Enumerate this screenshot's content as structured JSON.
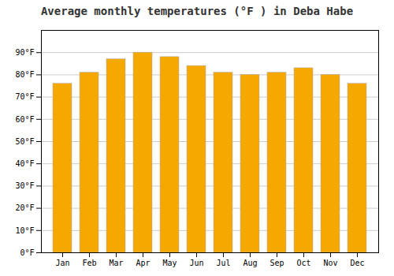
{
  "chart_data": {
    "type": "bar",
    "title": "Average monthly temperatures (°F ) in Deba Habe",
    "categories": [
      "Jan",
      "Feb",
      "Mar",
      "Apr",
      "May",
      "Jun",
      "Jul",
      "Aug",
      "Sep",
      "Oct",
      "Nov",
      "Dec"
    ],
    "values": [
      76,
      81,
      87,
      90,
      88,
      84,
      81,
      80,
      81,
      83,
      80,
      76
    ],
    "color": "#F5A800",
    "ylim": [
      0,
      100
    ],
    "yticks": [
      {
        "value": 0,
        "label": "0°F"
      },
      {
        "value": 10,
        "label": "10°F"
      },
      {
        "value": 20,
        "label": "20°F"
      },
      {
        "value": 30,
        "label": "30°F"
      },
      {
        "value": 40,
        "label": "40°F"
      },
      {
        "value": 50,
        "label": "50°F"
      },
      {
        "value": 60,
        "label": "60°F"
      },
      {
        "value": 70,
        "label": "70°F"
      },
      {
        "value": 80,
        "label": "80°F"
      },
      {
        "value": 90,
        "label": "90°F"
      }
    ],
    "grid": true
  }
}
